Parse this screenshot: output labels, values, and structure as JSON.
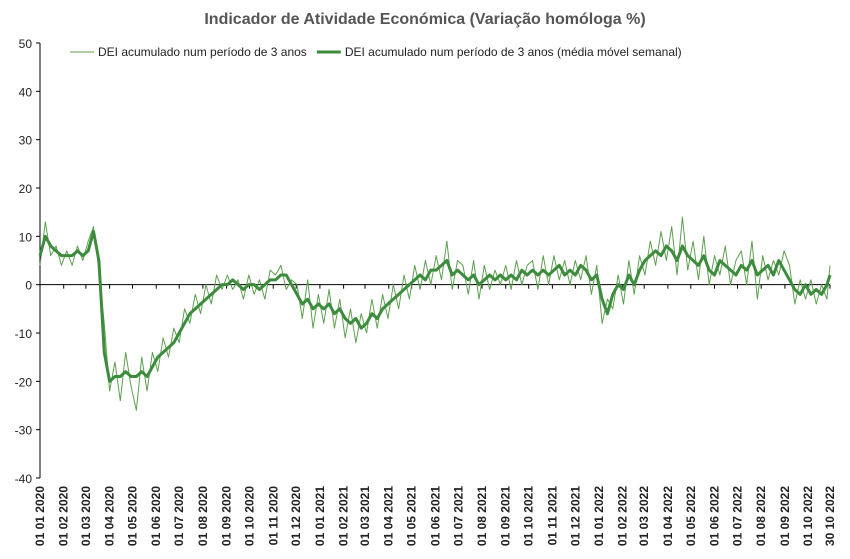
{
  "chart_data": {
    "type": "line",
    "title": "Indicador de Atividade Económica (Variação homóloga %)",
    "x": [
      "2020-01-01",
      "2020-01-08",
      "2020-01-15",
      "2020-01-22",
      "2020-01-29",
      "2020-02-05",
      "2020-02-12",
      "2020-02-19",
      "2020-02-26",
      "2020-03-04",
      "2020-03-11",
      "2020-03-18",
      "2020-03-25",
      "2020-04-01",
      "2020-04-08",
      "2020-04-15",
      "2020-04-22",
      "2020-04-29",
      "2020-05-06",
      "2020-05-13",
      "2020-05-20",
      "2020-05-27",
      "2020-06-03",
      "2020-06-10",
      "2020-06-17",
      "2020-06-24",
      "2020-07-01",
      "2020-07-08",
      "2020-07-15",
      "2020-07-22",
      "2020-07-29",
      "2020-08-05",
      "2020-08-12",
      "2020-08-19",
      "2020-08-26",
      "2020-09-02",
      "2020-09-09",
      "2020-09-16",
      "2020-09-23",
      "2020-09-30",
      "2020-10-07",
      "2020-10-14",
      "2020-10-21",
      "2020-10-28",
      "2020-11-04",
      "2020-11-11",
      "2020-11-18",
      "2020-11-25",
      "2020-12-02",
      "2020-12-09",
      "2020-12-16",
      "2020-12-23",
      "2020-12-30",
      "2021-01-06",
      "2021-01-13",
      "2021-01-20",
      "2021-01-27",
      "2021-02-03",
      "2021-02-10",
      "2021-02-17",
      "2021-02-24",
      "2021-03-03",
      "2021-03-10",
      "2021-03-17",
      "2021-03-24",
      "2021-03-31",
      "2021-04-07",
      "2021-04-14",
      "2021-04-21",
      "2021-04-28",
      "2021-05-05",
      "2021-05-12",
      "2021-05-19",
      "2021-05-26",
      "2021-06-02",
      "2021-06-09",
      "2021-06-16",
      "2021-06-23",
      "2021-06-30",
      "2021-07-07",
      "2021-07-14",
      "2021-07-21",
      "2021-07-28",
      "2021-08-04",
      "2021-08-11",
      "2021-08-18",
      "2021-08-25",
      "2021-09-01",
      "2021-09-08",
      "2021-09-15",
      "2021-09-22",
      "2021-09-29",
      "2021-10-06",
      "2021-10-13",
      "2021-10-20",
      "2021-10-27",
      "2021-11-03",
      "2021-11-10",
      "2021-11-17",
      "2021-11-24",
      "2021-12-01",
      "2021-12-08",
      "2021-12-15",
      "2021-12-22",
      "2021-12-29",
      "2022-01-05",
      "2022-01-12",
      "2022-01-19",
      "2022-01-26",
      "2022-02-02",
      "2022-02-09",
      "2022-02-16",
      "2022-02-23",
      "2022-03-02",
      "2022-03-09",
      "2022-03-16",
      "2022-03-23",
      "2022-03-30",
      "2022-04-06",
      "2022-04-13",
      "2022-04-20",
      "2022-04-27",
      "2022-05-04",
      "2022-05-11",
      "2022-05-18",
      "2022-05-25",
      "2022-06-01",
      "2022-06-08",
      "2022-06-15",
      "2022-06-22",
      "2022-06-29",
      "2022-07-06",
      "2022-07-13",
      "2022-07-20",
      "2022-07-27",
      "2022-08-03",
      "2022-08-10",
      "2022-08-17",
      "2022-08-24",
      "2022-08-31",
      "2022-09-07",
      "2022-09-14",
      "2022-09-21",
      "2022-09-28",
      "2022-10-05",
      "2022-10-12",
      "2022-10-19",
      "2022-10-26",
      "2022-10-30"
    ],
    "series": [
      {
        "name": "DEI acumulado num período de 3 anos",
        "color": "#5ca04e",
        "width": 1,
        "values": [
          4,
          13,
          6,
          8,
          4,
          7,
          4,
          8,
          5,
          9,
          12,
          3,
          -8,
          -22,
          -16,
          -24,
          -14,
          -21,
          -26,
          -15,
          -22,
          -14,
          -18,
          -11,
          -15,
          -9,
          -12,
          -5,
          -8,
          -2,
          -6,
          0,
          -4,
          2,
          -1,
          2,
          -1,
          1,
          -3,
          2,
          -2,
          1,
          -3,
          3,
          2,
          4,
          -1,
          1,
          0,
          -7,
          1,
          -9,
          -2,
          -8,
          -1,
          -9,
          -3,
          -11,
          -5,
          -12,
          -6,
          -10,
          -3,
          -9,
          -2,
          -7,
          0,
          -5,
          2,
          -3,
          4,
          -1,
          5,
          0,
          6,
          1,
          9,
          -1,
          5,
          4,
          -2,
          5,
          -3,
          4,
          -1,
          3,
          0,
          4,
          -1,
          5,
          0,
          4,
          5,
          -1,
          6,
          0,
          6,
          1,
          5,
          0,
          5,
          1,
          6,
          -2,
          4,
          -8,
          -3,
          -5,
          2,
          -4,
          5,
          -2,
          6,
          2,
          9,
          4,
          11,
          5,
          12,
          2,
          14,
          3,
          9,
          1,
          10,
          0,
          6,
          2,
          8,
          0,
          5,
          7,
          0,
          9,
          -3,
          6,
          1,
          5,
          2,
          7,
          4,
          -4,
          1,
          -3,
          1,
          -4,
          0,
          -3,
          4
        ]
      },
      {
        "name": "DEI acumulado num período de 3 anos (média móvel semanal)",
        "color": "#3d8b3d",
        "width": 3,
        "values": [
          6,
          10,
          8,
          7,
          6,
          6,
          6,
          7,
          6,
          7,
          11,
          5,
          -14,
          -20,
          -19,
          -19,
          -18,
          -19,
          -19,
          -18,
          -19,
          -17,
          -15,
          -14,
          -13,
          -12,
          -10,
          -8,
          -6,
          -5,
          -4,
          -3,
          -2,
          -1,
          0,
          0,
          1,
          0,
          -1,
          0,
          0,
          -1,
          0,
          1,
          1,
          2,
          2,
          0,
          -2,
          -4,
          -3,
          -5,
          -4,
          -5,
          -4,
          -6,
          -5,
          -7,
          -8,
          -7,
          -9,
          -8,
          -6,
          -7,
          -5,
          -4,
          -3,
          -2,
          -1,
          0,
          1,
          2,
          1,
          3,
          3,
          4,
          5,
          2,
          3,
          2,
          1,
          2,
          0,
          1,
          2,
          1,
          2,
          1,
          2,
          1,
          3,
          2,
          3,
          2,
          3,
          2,
          3,
          4,
          2,
          3,
          2,
          4,
          3,
          1,
          2,
          -3,
          -6,
          -2,
          0,
          -1,
          2,
          0,
          3,
          5,
          6,
          7,
          6,
          8,
          7,
          5,
          8,
          6,
          5,
          4,
          6,
          3,
          2,
          5,
          4,
          3,
          2,
          4,
          3,
          5,
          2,
          3,
          4,
          2,
          5,
          3,
          1,
          -1,
          -2,
          0,
          -2,
          -1,
          -2,
          0,
          2
        ]
      }
    ],
    "xlim": [
      "2020-01-01",
      "2022-10-30"
    ],
    "xticks": [
      {
        "value": "2020-01-01",
        "label": "01 01 2020"
      },
      {
        "value": "2020-02-01",
        "label": "01 02 2020"
      },
      {
        "value": "2020-03-01",
        "label": "01 03 2020"
      },
      {
        "value": "2020-04-01",
        "label": "01 04 2020"
      },
      {
        "value": "2020-05-01",
        "label": "01 05 2020"
      },
      {
        "value": "2020-06-01",
        "label": "01 06 2020"
      },
      {
        "value": "2020-07-01",
        "label": "01 07 2020"
      },
      {
        "value": "2020-08-01",
        "label": "01 08 2020"
      },
      {
        "value": "2020-09-01",
        "label": "01 09 2020"
      },
      {
        "value": "2020-10-01",
        "label": "01 10 2020"
      },
      {
        "value": "2020-11-01",
        "label": "01 11 2020"
      },
      {
        "value": "2020-12-01",
        "label": "01 12 2020"
      },
      {
        "value": "2021-01-01",
        "label": "01 01 2021"
      },
      {
        "value": "2021-02-01",
        "label": "01 02 2021"
      },
      {
        "value": "2021-03-01",
        "label": "01 03 2021"
      },
      {
        "value": "2021-04-01",
        "label": "01 04 2021"
      },
      {
        "value": "2021-05-01",
        "label": "01 05 2021"
      },
      {
        "value": "2021-06-01",
        "label": "01 06 2021"
      },
      {
        "value": "2021-07-01",
        "label": "01 07 2021"
      },
      {
        "value": "2021-08-01",
        "label": "01 08 2021"
      },
      {
        "value": "2021-09-01",
        "label": "01 09 2021"
      },
      {
        "value": "2021-10-01",
        "label": "01 10 2021"
      },
      {
        "value": "2021-11-01",
        "label": "01 11 2021"
      },
      {
        "value": "2021-12-01",
        "label": "01 12 2021"
      },
      {
        "value": "2022-01-01",
        "label": "01 01 2022"
      },
      {
        "value": "2022-02-01",
        "label": "01 02 2022"
      },
      {
        "value": "2022-03-01",
        "label": "01 03 2022"
      },
      {
        "value": "2022-04-01",
        "label": "01 04 2022"
      },
      {
        "value": "2022-05-01",
        "label": "01 05 2022"
      },
      {
        "value": "2022-06-01",
        "label": "01 06 2022"
      },
      {
        "value": "2022-07-01",
        "label": "01 07 2022"
      },
      {
        "value": "2022-08-01",
        "label": "01 08 2022"
      },
      {
        "value": "2022-09-01",
        "label": "01 09 2022"
      },
      {
        "value": "2022-10-01",
        "label": "01 10 2022"
      },
      {
        "value": "2022-10-30",
        "label": "30 10 2022"
      }
    ],
    "ylim": [
      -40,
      50
    ],
    "yticks": [
      -40,
      -30,
      -20,
      -10,
      0,
      10,
      20,
      30,
      40,
      50
    ],
    "legend": "top"
  }
}
